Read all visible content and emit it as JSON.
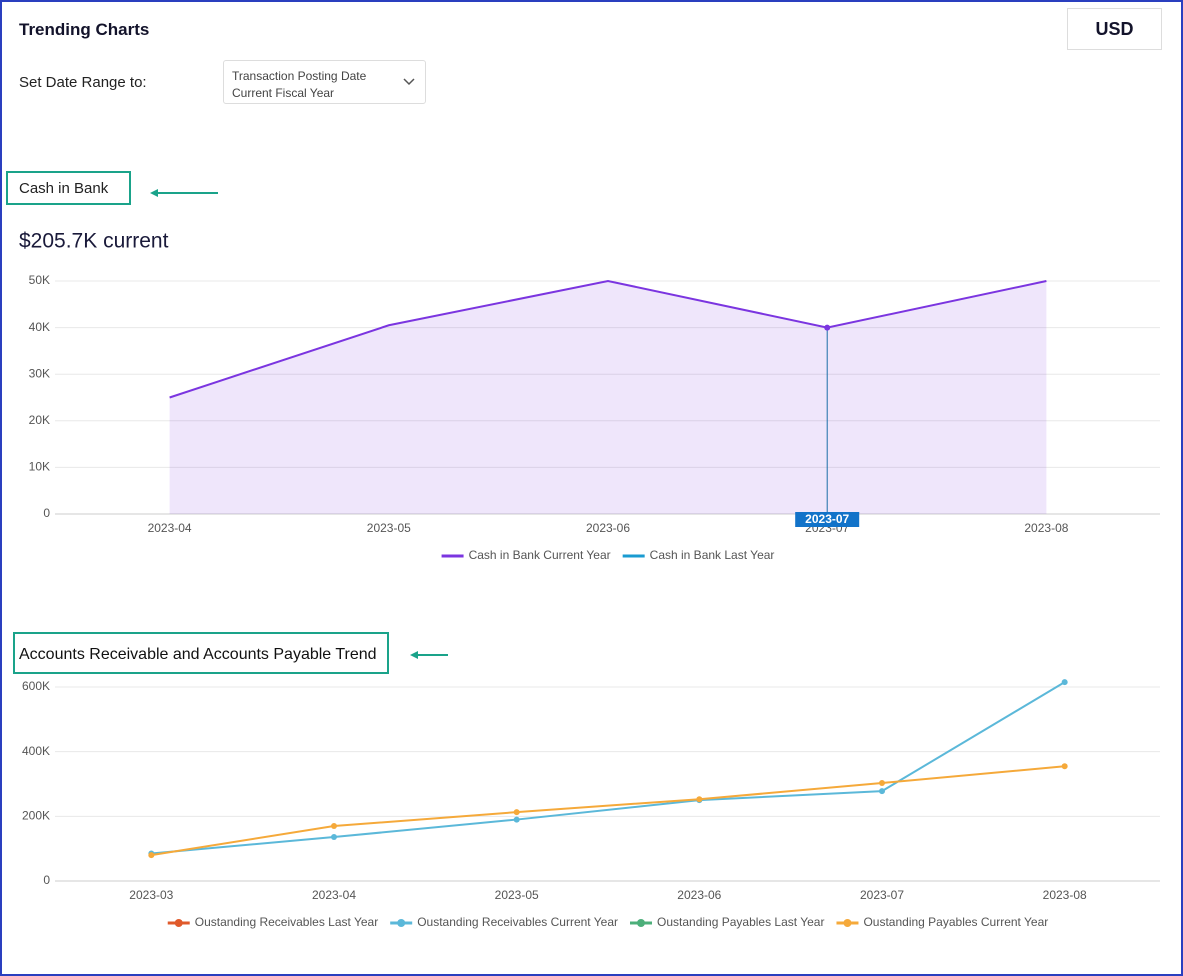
{
  "header": {
    "title": "Trending Charts",
    "currency": "USD",
    "date_range_label": "Set Date Range to:",
    "date_range_field": "Transaction Posting Date",
    "date_range_value": "Current Fiscal Year"
  },
  "chart_data": [
    {
      "type": "area",
      "title": "Cash in Bank",
      "subtitle": "$205.7K current",
      "categories": [
        "2023-04",
        "2023-05",
        "2023-06",
        "2023-07",
        "2023-08"
      ],
      "series": [
        {
          "name": "Cash in Bank Current Year",
          "color": "#7b35e0",
          "values": [
            25000,
            40500,
            50000,
            40000,
            50000
          ]
        },
        {
          "name": "Cash in Bank Last Year",
          "color": "#1a9bd1",
          "values": [
            null,
            null,
            null,
            null,
            null
          ]
        }
      ],
      "ylim": [
        0,
        50000
      ],
      "yticks": [
        0,
        {
          "value": 10000,
          "label": "10K"
        },
        {
          "value": 20000,
          "label": "20K"
        },
        {
          "value": 30000,
          "label": "30K"
        },
        {
          "value": 40000,
          "label": "40K"
        },
        {
          "value": 50000,
          "label": "50K"
        }
      ],
      "grid": true,
      "legend": "bottom",
      "hover_category": "2023-07"
    },
    {
      "type": "line",
      "title": "Accounts Receivable and Accounts Payable Trend",
      "categories": [
        "2023-03",
        "2023-04",
        "2023-05",
        "2023-06",
        "2023-07",
        "2023-08"
      ],
      "series": [
        {
          "name": "Oustanding Receivables Last Year",
          "color": "#e05a2b",
          "values": [
            null,
            null,
            null,
            null,
            null,
            null
          ]
        },
        {
          "name": "Oustanding Receivables Current Year",
          "color": "#5bb8d9",
          "values": [
            85000,
            136000,
            190000,
            250000,
            278000,
            615000
          ]
        },
        {
          "name": "Oustanding Payables Last Year",
          "color": "#4caf7a",
          "values": [
            null,
            null,
            null,
            null,
            null,
            null
          ]
        },
        {
          "name": "Oustanding Payables Current Year",
          "color": "#f5a93a",
          "values": [
            80000,
            170000,
            213000,
            253000,
            303000,
            355000
          ]
        }
      ],
      "ylim": [
        0,
        600000
      ],
      "yticks": [
        0,
        {
          "value": 200000,
          "label": "200K"
        },
        {
          "value": 400000,
          "label": "400K"
        },
        {
          "value": 600000,
          "label": "600K"
        }
      ],
      "grid": true,
      "legend": "bottom",
      "markers": true
    }
  ]
}
